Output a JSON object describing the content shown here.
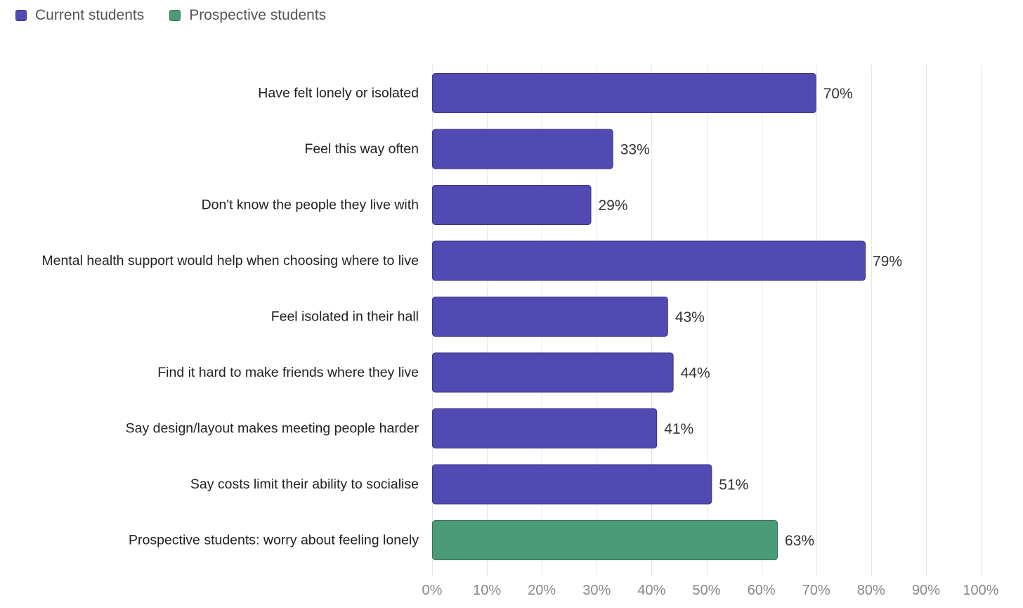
{
  "chart_data": {
    "type": "bar",
    "orientation": "horizontal",
    "categories": [
      "Have felt lonely or isolated",
      "Feel this way often",
      "Don't know the people they live with",
      "Mental health support would help when choosing where to live",
      "Feel isolated in their hall",
      "Find it hard to make friends where they live",
      "Say design/layout makes meeting people harder",
      "Say costs limit their ability to socialise",
      "Prospective students: worry about feeling lonely"
    ],
    "values": [
      70,
      33,
      29,
      79,
      43,
      44,
      41,
      51,
      63
    ],
    "groups": [
      "Current students",
      "Current students",
      "Current students",
      "Current students",
      "Current students",
      "Current students",
      "Current students",
      "Current students",
      "Prospective students"
    ],
    "value_labels": [
      "70%",
      "33%",
      "29%",
      "79%",
      "43%",
      "44%",
      "41%",
      "51%",
      "63%"
    ],
    "legend": [
      {
        "name": "Current students",
        "color": "#524ab3"
      },
      {
        "name": "Prospective students",
        "color": "#4b9b78"
      }
    ],
    "legend_position": "top-left",
    "xlim": [
      0,
      100
    ],
    "x_ticks": [
      0,
      10,
      20,
      30,
      40,
      50,
      60,
      70,
      80,
      90,
      100
    ],
    "x_tick_labels": [
      "0%",
      "10%",
      "20%",
      "30%",
      "40%",
      "50%",
      "60%",
      "70%",
      "80%",
      "90%",
      "100%"
    ],
    "grid": true,
    "title": "",
    "xlabel": "",
    "ylabel": ""
  }
}
